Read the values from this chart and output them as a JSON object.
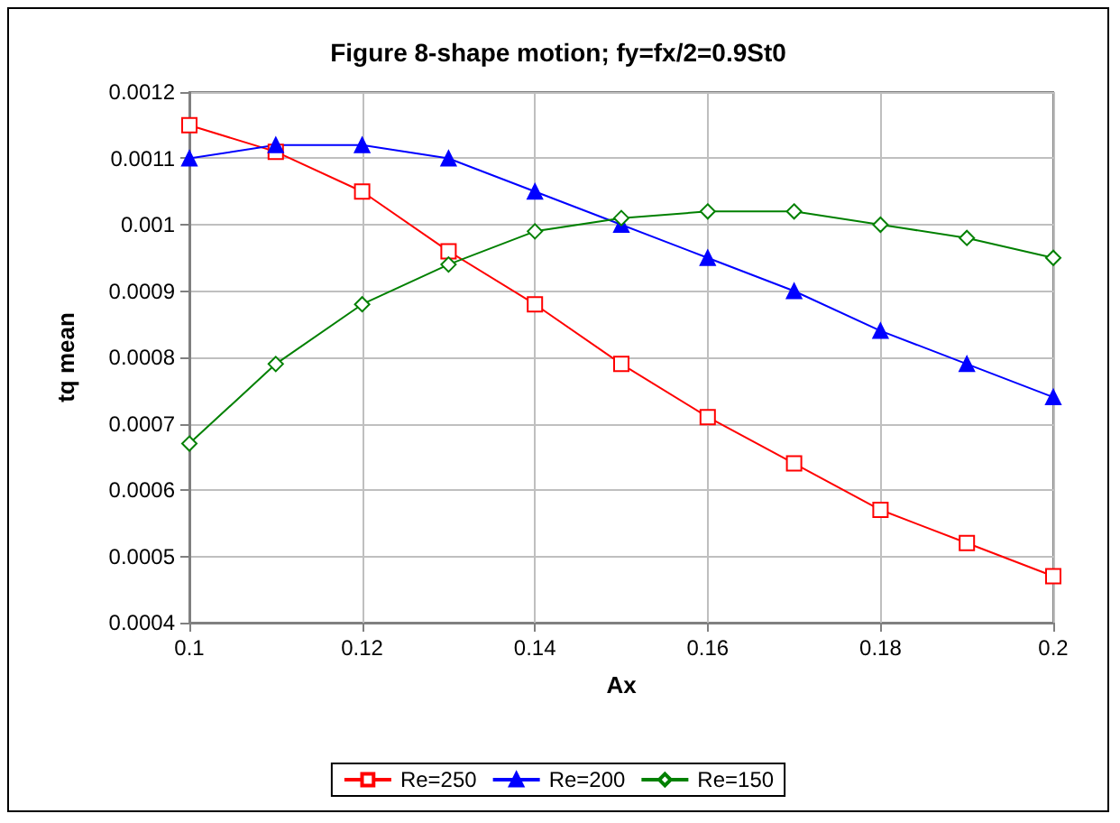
{
  "chart_data": {
    "type": "line",
    "title": "Figure 8-shape motion; fy=fx/2=0.9St0",
    "xlabel": "Ax",
    "ylabel": "tq mean",
    "x": [
      0.1,
      0.11,
      0.12,
      0.13,
      0.14,
      0.15,
      0.16,
      0.17,
      0.18,
      0.19,
      0.2
    ],
    "series": [
      {
        "name": "Re=250",
        "color": "#ff0000",
        "marker": "square",
        "values": [
          0.00115,
          0.00111,
          0.00105,
          0.00096,
          0.00088,
          0.00079,
          0.00071,
          0.00064,
          0.00057,
          0.00052,
          0.00047
        ]
      },
      {
        "name": "Re=200",
        "color": "#0000ff",
        "marker": "triangle",
        "values": [
          0.0011,
          0.00112,
          0.00112,
          0.0011,
          0.00105,
          0.001,
          0.00095,
          0.0009,
          0.00084,
          0.00079,
          0.00074
        ]
      },
      {
        "name": "Re=150",
        "color": "#008000",
        "marker": "diamond",
        "values": [
          0.00067,
          0.00079,
          0.00088,
          0.00094,
          0.00099,
          0.00101,
          0.00102,
          0.00102,
          0.001,
          0.00098,
          0.00095
        ]
      }
    ],
    "xlim": [
      0.1,
      0.2
    ],
    "xticks": [
      0.1,
      0.12,
      0.14,
      0.16,
      0.18,
      0.2
    ],
    "ylim": [
      0.0004,
      0.0012
    ],
    "yticks": [
      0.0004,
      0.0005,
      0.0006,
      0.0007,
      0.0008,
      0.0009,
      0.001,
      0.0011,
      0.0012
    ],
    "grid": true,
    "legend": "bottom",
    "line_style": "solid"
  }
}
